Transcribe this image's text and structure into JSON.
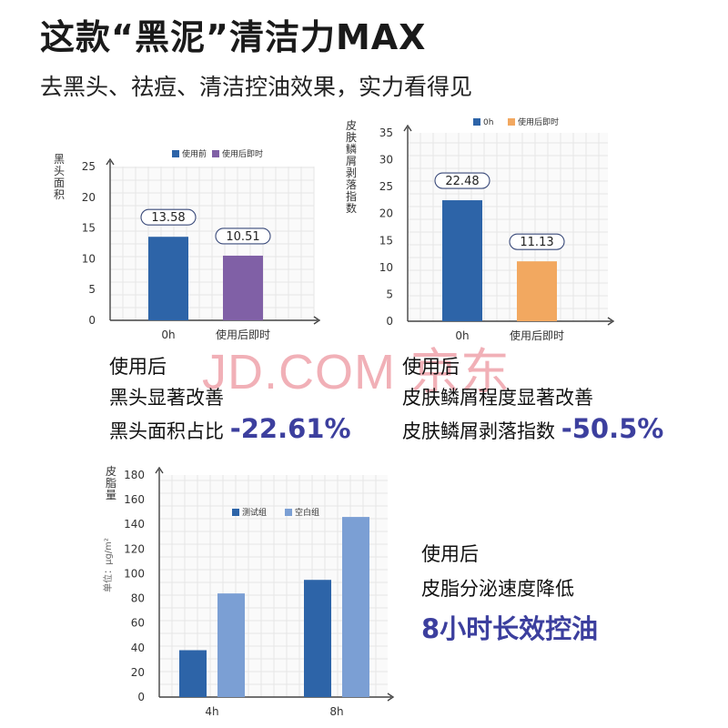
{
  "header": {
    "title": "这款“黑泥”清洁力MAX",
    "subtitle": "去黑头、祛痘、清洁控油效果，实力看得见"
  },
  "watermark": "JD.COM 京东",
  "chart_data": [
    {
      "type": "bar",
      "ylabel": "黑头面积",
      "categories": [
        "0h",
        "使用后即时"
      ],
      "series": [
        {
          "name": "使用前",
          "values": [
            13.58,
            null
          ],
          "color": "#2d64a8"
        },
        {
          "name": "使用后即时",
          "values": [
            null,
            10.51
          ],
          "color": "#8060a6"
        }
      ],
      "data_labels": [
        "13.58",
        "10.51"
      ],
      "ylim": [
        0,
        25
      ],
      "yticks": [
        0,
        5,
        10,
        15,
        20,
        25
      ],
      "grid": true,
      "legend": "top"
    },
    {
      "type": "bar",
      "ylabel": "皮肤鳞屑剥落指数",
      "categories": [
        "0h",
        "使用后即时"
      ],
      "series": [
        {
          "name": "0h",
          "values": [
            22.48,
            null
          ],
          "color": "#2d64a8"
        },
        {
          "name": "使用后即时",
          "values": [
            null,
            11.13
          ],
          "color": "#f2a860"
        }
      ],
      "data_labels": [
        "22.48",
        "11.13"
      ],
      "ylim": [
        0,
        35
      ],
      "yticks": [
        0,
        5,
        10,
        15,
        20,
        25,
        30,
        35
      ],
      "grid": true,
      "legend": "top"
    },
    {
      "type": "bar",
      "ylabel": "皮脂量",
      "yunit": "单位：μg/m²",
      "categories": [
        "4h",
        "8h"
      ],
      "series": [
        {
          "name": "测试组",
          "values": [
            38,
            95
          ],
          "color": "#2d64a8"
        },
        {
          "name": "空白组",
          "values": [
            84,
            146
          ],
          "color": "#7b9fd4"
        }
      ],
      "ylim": [
        0,
        180
      ],
      "yticks": [
        0,
        20,
        40,
        60,
        80,
        100,
        120,
        140,
        160,
        180
      ],
      "grid": true,
      "legend": "top"
    }
  ],
  "captions": {
    "c1": {
      "l1": "使用后",
      "l2": "黑头显著改善",
      "l3": "黑头面积占比",
      "value": "-22.61%"
    },
    "c2": {
      "l1": "使用后",
      "l2": "皮肤鳞屑程度显著改善",
      "l3": "皮肤鳞屑剥落指数",
      "value": "-50.5%"
    },
    "c3": {
      "l1": "使用后",
      "l2": "皮脂分泌速度降低",
      "l3": "8小时长效控油"
    }
  }
}
